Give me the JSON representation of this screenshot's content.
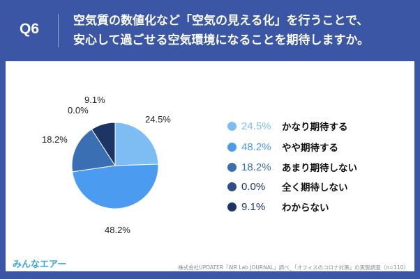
{
  "header": {
    "q": "Q6",
    "title_line1": "空気質の数値化など「空気の見える化」を行うことで、",
    "title_line2": "安心して過ごせる空気環境になることを期待しますか。"
  },
  "chart_data": {
    "type": "pie",
    "title": "空気質の数値化など「空気の見える化」を行うことで、安心して過ごせる空気環境になることを期待しますか。",
    "categories": [
      "かなり期待する",
      "やや期待する",
      "あまり期待しない",
      "全く期待しない",
      "わからない"
    ],
    "values": [
      24.5,
      48.2,
      18.2,
      0.0,
      9.1
    ],
    "labels": [
      "24.5%",
      "48.2%",
      "18.2%",
      "0.0%",
      "9.1%"
    ],
    "colors": [
      "#7ebdf4",
      "#4b9cf0",
      "#3b6fb3",
      "#2b4f8a",
      "#1d3564"
    ],
    "legend": "right"
  },
  "footer": {
    "logo": "みんなエアー",
    "source": "株式会社UPDATER「AIR Lab JOURNAL」調べ_「オフィスのコロナ対策」の実態調査（n=110）"
  }
}
